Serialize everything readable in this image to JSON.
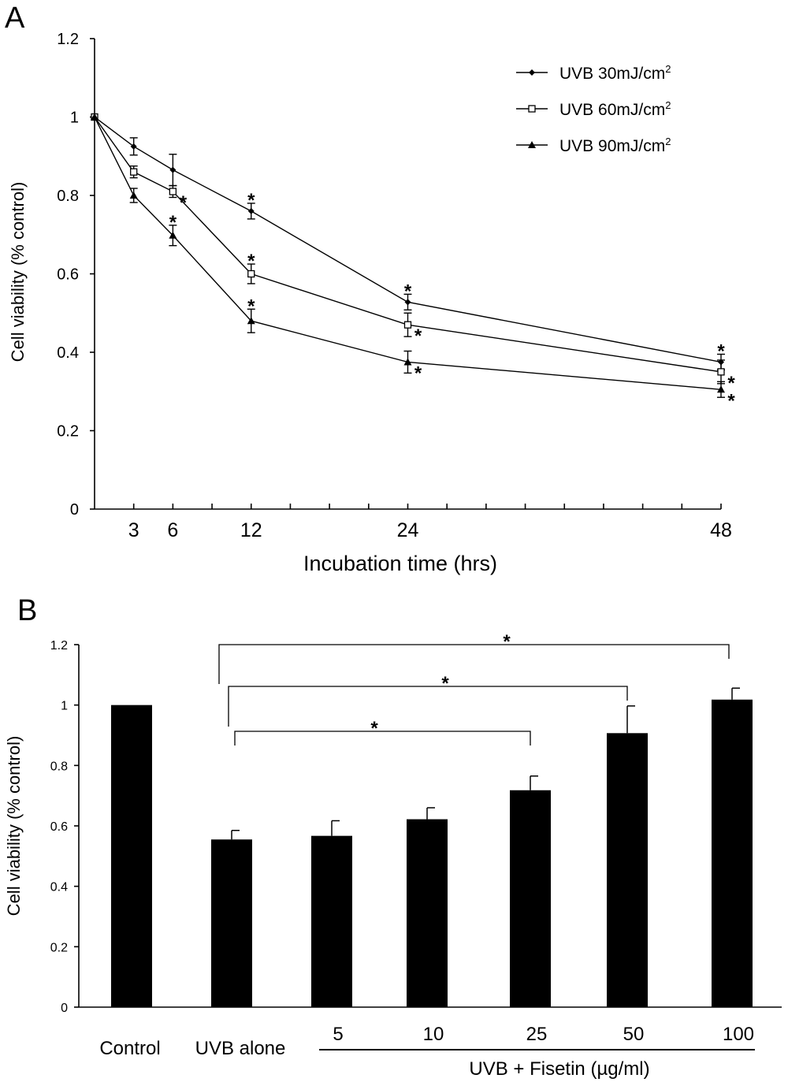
{
  "chart_data": [
    {
      "panel": "A",
      "type": "line",
      "xlabel": "Incubation time (hrs)",
      "ylabel": "Cell viability (% control)",
      "xlim": [
        0,
        48
      ],
      "ylim": [
        0,
        1.2
      ],
      "x_ticks": [
        3,
        6,
        12,
        24,
        48
      ],
      "x_tick_labels": [
        "3",
        "6",
        "12",
        "24",
        "48"
      ],
      "y_ticks": [
        0,
        0.2,
        0.4,
        0.6,
        0.8,
        1,
        1.2
      ],
      "y_tick_labels": [
        "0",
        "0.2",
        "0.4",
        "0.6",
        "0.8",
        "1",
        "1.2"
      ],
      "legend_position": "top-right",
      "x": [
        0,
        3,
        6,
        12,
        24,
        48
      ],
      "series": [
        {
          "name": "UVB 30mJ/cm²",
          "label": "UVB 30mJ/cm",
          "sup": "2",
          "marker": "diamond",
          "values": [
            1,
            0.925,
            0.865,
            0.76,
            0.528,
            0.375
          ],
          "errors": [
            0,
            0.022,
            0.04,
            0.02,
            0.02,
            0.02
          ],
          "significant": [
            false,
            false,
            false,
            true,
            true,
            true
          ],
          "star_side": [
            "",
            "",
            "",
            "top",
            "top",
            "top"
          ]
        },
        {
          "name": "UVB 60mJ/cm²",
          "label": "UVB 60mJ/cm",
          "sup": "2",
          "marker": "square",
          "values": [
            1,
            0.86,
            0.81,
            0.6,
            0.47,
            0.35
          ],
          "errors": [
            0,
            0.015,
            0.015,
            0.025,
            0.03,
            0.03
          ],
          "significant": [
            false,
            false,
            true,
            true,
            true,
            true
          ],
          "star_side": [
            "",
            "",
            "right",
            "top",
            "right",
            "right"
          ]
        },
        {
          "name": "UVB 90mJ/cm²",
          "label": "UVB 90mJ/cm",
          "sup": "2",
          "marker": "triangle",
          "values": [
            1,
            0.8,
            0.698,
            0.48,
            0.375,
            0.305
          ],
          "errors": [
            0,
            0.018,
            0.026,
            0.03,
            0.028,
            0.02
          ],
          "significant": [
            false,
            false,
            true,
            true,
            true,
            true
          ],
          "star_side": [
            "",
            "",
            "top",
            "top",
            "right",
            "right"
          ]
        }
      ],
      "star": "*"
    },
    {
      "panel": "B",
      "type": "bar",
      "ylabel": "Cell viability (% control)",
      "ylim": [
        0,
        1.2
      ],
      "y_ticks": [
        0,
        0.2,
        0.4,
        0.6,
        0.8,
        1,
        1.2
      ],
      "y_tick_labels": [
        "0",
        "0.2",
        "0.4",
        "0.6",
        "0.8",
        "1",
        "1.2"
      ],
      "categories": [
        "Control",
        "UVB alone",
        "5",
        "10",
        "25",
        "50",
        "100"
      ],
      "values": [
        1.0,
        0.555,
        0.567,
        0.622,
        0.718,
        0.907,
        1.018
      ],
      "errors": [
        0,
        0.03,
        0.05,
        0.038,
        0.047,
        0.09,
        0.038
      ],
      "group_label": "UVB + Fisetin (µg/ml)",
      "comparisons": [
        {
          "from": "UVB alone",
          "to": "100",
          "label": "*"
        },
        {
          "from": "UVB alone",
          "to": "50",
          "label": "*"
        },
        {
          "from": "UVB alone",
          "to": "25",
          "label": "*"
        }
      ],
      "bar_color": "#000000"
    }
  ],
  "panel_labels": [
    "A",
    "B"
  ]
}
